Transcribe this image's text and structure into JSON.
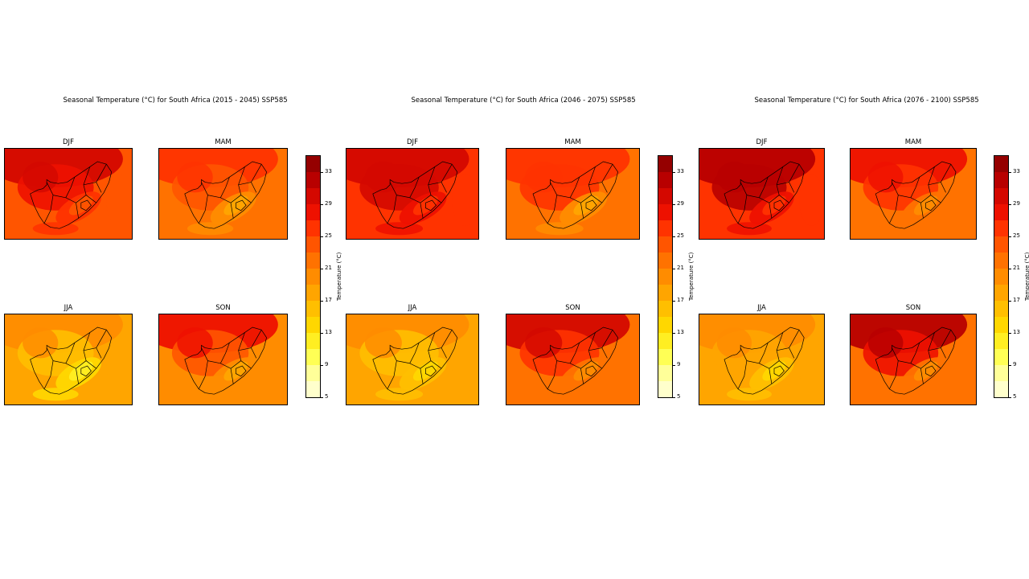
{
  "figures": [
    {
      "title": "Seasonal Temperature (°C) for South Africa (2015 - 2045) SSP585",
      "seasons": [
        {
          "name": "DJF",
          "interior_level": 27,
          "north_level": 29,
          "coast_level": 23,
          "plateau_level": 23
        },
        {
          "name": "MAM",
          "interior_level": 23,
          "north_level": 25,
          "coast_level": 21,
          "plateau_level": 17
        },
        {
          "name": "JJA",
          "interior_level": 15,
          "north_level": 19,
          "coast_level": 17,
          "plateau_level": 11
        },
        {
          "name": "SON",
          "interior_level": 23,
          "north_level": 27,
          "coast_level": 19,
          "plateau_level": 17
        }
      ]
    },
    {
      "title": "Seasonal Temperature (°C) for South Africa (2046 - 2075) SSP585",
      "seasons": [
        {
          "name": "DJF",
          "interior_level": 29,
          "north_level": 29,
          "coast_level": 25,
          "plateau_level": 25
        },
        {
          "name": "MAM",
          "interior_level": 25,
          "north_level": 25,
          "coast_level": 21,
          "plateau_level": 17
        },
        {
          "name": "JJA",
          "interior_level": 15,
          "north_level": 19,
          "coast_level": 17,
          "plateau_level": 13
        },
        {
          "name": "SON",
          "interior_level": 25,
          "north_level": 29,
          "coast_level": 21,
          "plateau_level": 19
        }
      ]
    },
    {
      "title": "Seasonal Temperature (°C) for South Africa (2076 - 2100) SSP585",
      "seasons": [
        {
          "name": "DJF",
          "interior_level": 31,
          "north_level": 31,
          "coast_level": 25,
          "plateau_level": 25
        },
        {
          "name": "MAM",
          "interior_level": 25,
          "north_level": 27,
          "coast_level": 21,
          "plateau_level": 19
        },
        {
          "name": "JJA",
          "interior_level": 17,
          "north_level": 19,
          "coast_level": 17,
          "plateau_level": 13
        },
        {
          "name": "SON",
          "interior_level": 27,
          "north_level": 31,
          "coast_level": 21,
          "plateau_level": 19
        }
      ]
    }
  ],
  "colorbar": {
    "label": "Temperature (°C)",
    "ticks": [
      "5",
      "9",
      "13",
      "17",
      "21",
      "25",
      "29",
      "33"
    ],
    "range": [
      5,
      35
    ],
    "step": 2
  },
  "palette": [
    "#fffff0",
    "#ffffcc",
    "#ffff99",
    "#ffff55",
    "#ffee22",
    "#ffd700",
    "#ffbf00",
    "#ffa500",
    "#ff8c00",
    "#ff7200",
    "#ff5500",
    "#ff3300",
    "#ee1100",
    "#d40800",
    "#b80000",
    "#950000",
    "#700000",
    "#4a0000"
  ]
}
